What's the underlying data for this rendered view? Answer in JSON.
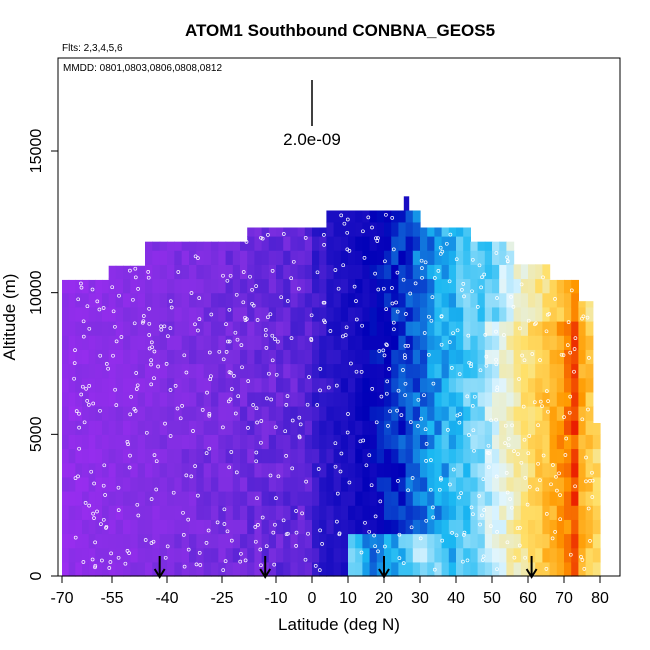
{
  "chart_data": {
    "type": "heatmap",
    "title": "ATOM1 Southbound CONBNA_GEOS5",
    "flights_note": "Flts: 2,3,4,5,6",
    "dates_note": "MMDD: 0801,0803,0806,0808,0812",
    "xlabel": "Latitude (deg N)",
    "ylabel": "Altitude (m)",
    "x_ticks": [
      -70,
      -55,
      -40,
      -25,
      -10,
      0,
      10,
      20,
      30,
      40,
      50,
      60,
      70,
      80
    ],
    "x_tick_labels": [
      "-70",
      "-55",
      "-40",
      "-25",
      "-10",
      "0",
      "10",
      "20",
      "30",
      "40",
      "50",
      "60",
      "70",
      "80"
    ],
    "y_ticks": [
      0,
      5000,
      10000,
      15000
    ],
    "y_tick_labels": [
      "0",
      "5000",
      "10000",
      "15000"
    ],
    "ylim": [
      0,
      18000
    ],
    "scale_bar_label": "2.0e-09",
    "arrow_latitudes": [
      -42,
      -13,
      20,
      61
    ],
    "colors": {
      "stops": [
        "#9a2df0",
        "#7c2ee0",
        "#2a16c8",
        "#0000b8",
        "#1ab8f2",
        "#dff5ff",
        "#ffe06a",
        "#ff9a00",
        "#e50000"
      ]
    }
  }
}
